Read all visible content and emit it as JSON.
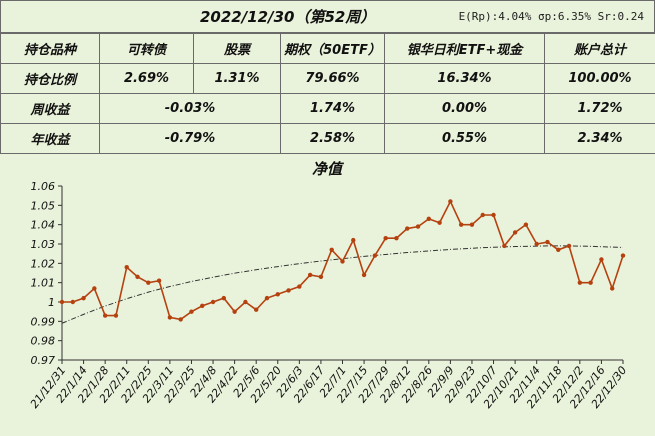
{
  "header": {
    "title": "2022/12/30（第52周）",
    "stats": "E(Rp):4.04% σp:6.35% Sr:0.24"
  },
  "table": {
    "row_names": [
      "持仓品种",
      "持仓比例",
      "周收益",
      "年收益"
    ],
    "holdings_header": [
      "可转债",
      "股票",
      "期权（50ETF）",
      "银华日利ETF+现金",
      "账户总计"
    ],
    "allocation": [
      "2.69%",
      "1.31%",
      "79.66%",
      "16.34%",
      "100.00%"
    ],
    "weekly": [
      "-0.03%",
      "1.74%",
      "0.00%",
      "1.72%"
    ],
    "yearly": [
      "-0.79%",
      "2.58%",
      "0.55%",
      "2.34%"
    ]
  },
  "colors": {
    "series": "#b5410f",
    "trend": "#333333",
    "background": "#e9f2da",
    "border": "#6a6a6a"
  },
  "chart_data": {
    "type": "line",
    "title": "净值",
    "xlabel": "",
    "ylabel": "",
    "ylim": [
      0.97,
      1.06
    ],
    "yticks": [
      0.97,
      0.98,
      0.99,
      1,
      1.01,
      1.02,
      1.03,
      1.04,
      1.05,
      1.06
    ],
    "ytick_labels": [
      "0.97",
      "0.98",
      "0.99",
      "1",
      "1.01",
      "1.02",
      "1.03",
      "1.04",
      "1.05",
      "1.06"
    ],
    "xtick_labels": [
      "21/12/31",
      "22/1/14",
      "22/1/28",
      "22/2/11",
      "22/2/25",
      "22/3/11",
      "22/3/25",
      "22/4/8",
      "22/4/22",
      "22/5/6",
      "22/5/20",
      "22/6/3",
      "22/6/17",
      "22/7/1",
      "22/7/15",
      "22/7/29",
      "22/8/12",
      "22/8/26",
      "22/9/9",
      "22/9/23",
      "22/10/7",
      "22/10/21",
      "22/11/4",
      "22/11/18",
      "22/12/2",
      "22/12/16",
      "22/12/30"
    ],
    "series": [
      {
        "values": [
          1.0,
          1.0,
          1.002,
          1.007,
          0.993,
          0.993,
          1.018,
          1.013,
          1.01,
          1.011,
          0.992,
          0.991,
          0.995,
          0.998,
          1.0,
          1.002,
          0.995,
          1.0,
          0.996,
          1.002,
          1.004,
          1.006,
          1.008,
          1.014,
          1.013,
          1.027,
          1.021,
          1.032,
          1.014,
          1.024,
          1.033,
          1.033,
          1.038,
          1.039,
          1.043,
          1.041,
          1.052,
          1.04,
          1.04,
          1.045,
          1.045,
          1.029,
          1.036,
          1.04,
          1.03,
          1.031,
          1.027,
          1.029,
          1.01,
          1.01,
          1.022,
          1.007,
          1.024
        ],
        "style": "solid-markers"
      },
      {
        "values": [
          0.989,
          0.9913,
          0.9936,
          0.9958,
          0.9979,
          0.9998,
          1.0017,
          1.0034,
          1.0051,
          1.0066,
          1.008,
          1.0093,
          1.0106,
          1.0117,
          1.0128,
          1.0139,
          1.0149,
          1.0158,
          1.0167,
          1.0175,
          1.0183,
          1.0191,
          1.0198,
          1.0205,
          1.0212,
          1.0218,
          1.0224,
          1.023,
          1.0236,
          1.0241,
          1.0246,
          1.0251,
          1.0256,
          1.026,
          1.0264,
          1.0268,
          1.0272,
          1.0275,
          1.0278,
          1.0281,
          1.0283,
          1.0285,
          1.0287,
          1.0288,
          1.0289,
          1.029,
          1.029,
          1.029,
          1.0289,
          1.0288,
          1.0286,
          1.0284,
          1.0282
        ],
        "style": "dash-dot-trend"
      }
    ],
    "grid": false,
    "legend": "none"
  }
}
